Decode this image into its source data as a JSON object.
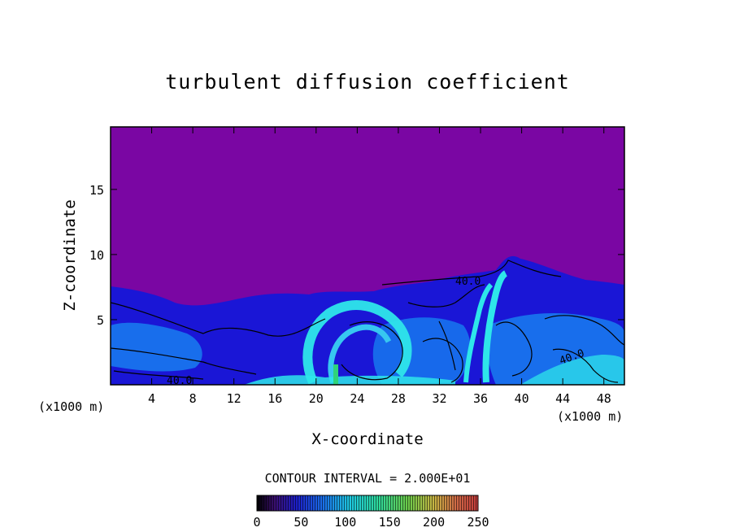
{
  "chart_data": {
    "type": "heatmap",
    "title": "turbulent diffusion coefficient",
    "xlabel": "X-coordinate",
    "ylabel": "Z-coordinate",
    "x_unit": "(x1000 m)",
    "xlim": [
      0,
      50
    ],
    "ylim": [
      0,
      19.8
    ],
    "x_ticks": [
      "4",
      "8",
      "12",
      "16",
      "20",
      "24",
      "28",
      "32",
      "36",
      "40",
      "44",
      "48"
    ],
    "y_ticks": [
      "5",
      "10",
      "15"
    ],
    "contour_interval_text": "CONTOUR INTERVAL = 2.000E+01",
    "contour_labels": [
      "40.0",
      "40.0",
      "40.0"
    ],
    "colorbar": {
      "min": 0,
      "max": 250,
      "ticks": [
        "0",
        "50",
        "100",
        "150",
        "200",
        "250"
      ]
    },
    "grid": false,
    "colors": {
      "background_field": "#7a06a3",
      "low": "#1a16d6",
      "mid": "#1878ee",
      "high": "#2ee6ea",
      "peak": "#2fd37a"
    }
  }
}
